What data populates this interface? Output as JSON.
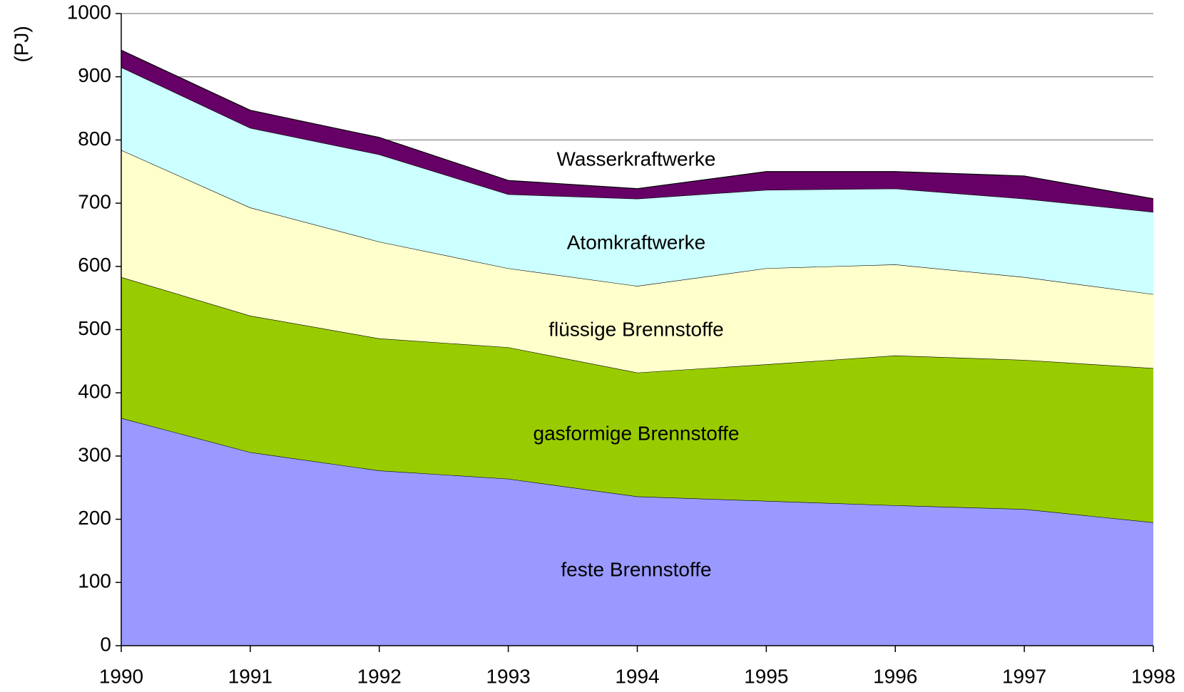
{
  "chart_data": {
    "type": "stacked_area",
    "y_label": "(PJ)",
    "x": [
      1990,
      1991,
      1992,
      1993,
      1994,
      1995,
      1996,
      1997,
      1998
    ],
    "xlim": [
      1990,
      1998
    ],
    "xticks": [
      1990,
      1991,
      1992,
      1993,
      1994,
      1995,
      1996,
      1997,
      1998
    ],
    "ylim": [
      0,
      1000
    ],
    "yticks": [
      0,
      100,
      200,
      300,
      400,
      500,
      600,
      700,
      800,
      900,
      1000
    ],
    "grid": true,
    "series": [
      {
        "name": "feste Brennstoffe",
        "color": "#9999ff",
        "values": [
          360,
          306,
          277,
          264,
          236,
          229,
          222,
          216,
          195
        ]
      },
      {
        "name": "gasformige Brennstoffe",
        "color": "#99cc00",
        "values": [
          223,
          216,
          209,
          208,
          196,
          216,
          237,
          236,
          244
        ]
      },
      {
        "name": "flüssige Brennstoffe",
        "color": "#ffffcc",
        "values": [
          201,
          171,
          153,
          125,
          137,
          152,
          144,
          131,
          117
        ]
      },
      {
        "name": "Atomkraftwerke",
        "color": "#ccffff",
        "values": [
          131,
          126,
          138,
          117,
          138,
          124,
          120,
          124,
          130
        ]
      },
      {
        "name": "Wasserkraftwerke",
        "color": "#660066",
        "values": [
          27,
          28,
          27,
          22,
          16,
          29,
          27,
          36,
          21
        ]
      }
    ]
  }
}
